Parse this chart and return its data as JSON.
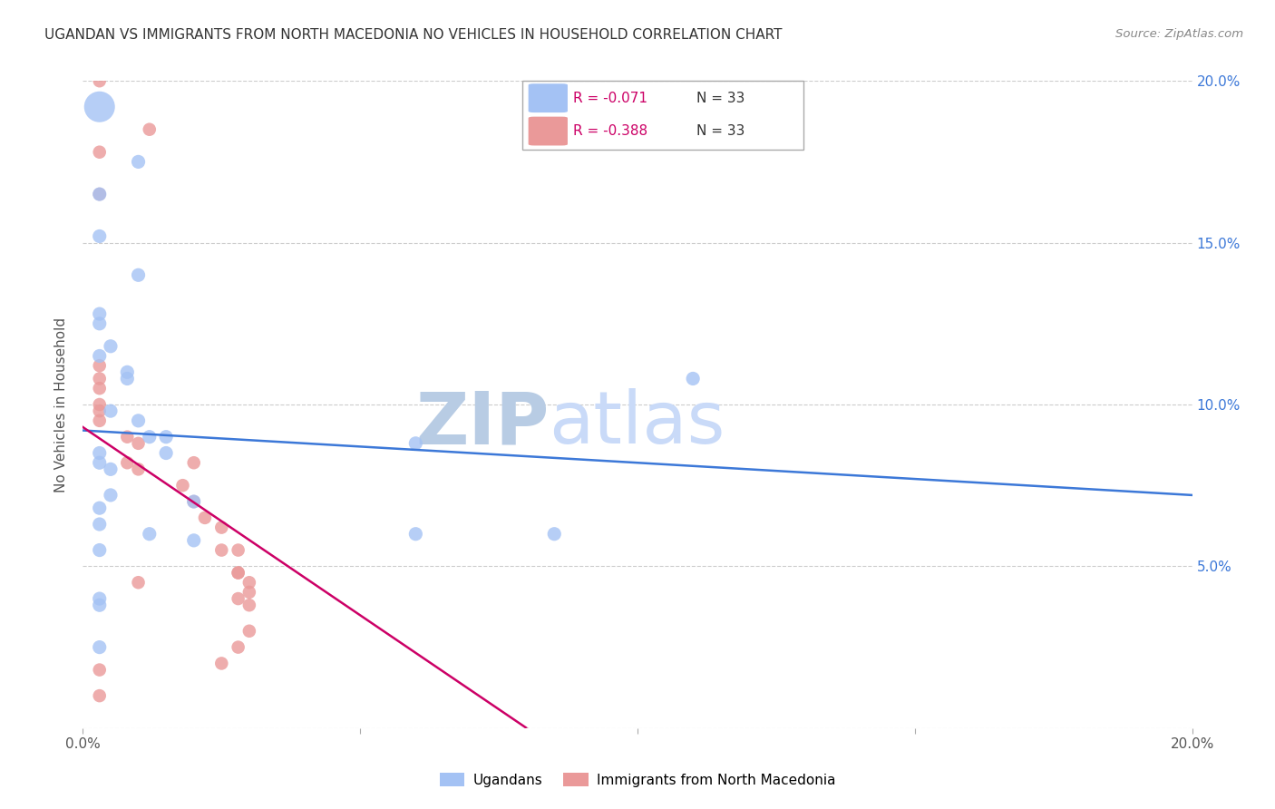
{
  "title": "UGANDAN VS IMMIGRANTS FROM NORTH MACEDONIA NO VEHICLES IN HOUSEHOLD CORRELATION CHART",
  "source": "Source: ZipAtlas.com",
  "ylabel": "No Vehicles in Household",
  "xlim": [
    0.0,
    0.2
  ],
  "ylim": [
    0.0,
    0.2
  ],
  "blue_color": "#a4c2f4",
  "pink_color": "#ea9999",
  "blue_line_color": "#3c78d8",
  "pink_line_color": "#cc0066",
  "pink_line_dashed_color": "#cccccc",
  "watermark_zip_color": "#c9d9f0",
  "watermark_atlas_color": "#c9d9f0",
  "legend_blue_R": "-0.071",
  "legend_blue_N": "33",
  "legend_pink_R": "-0.388",
  "legend_pink_N": "33",
  "legend_blue_label": "Ugandans",
  "legend_pink_label": "Immigrants from North Macedonia",
  "ugandan_x": [
    0.003,
    0.01,
    0.003,
    0.003,
    0.01,
    0.003,
    0.003,
    0.005,
    0.003,
    0.008,
    0.008,
    0.005,
    0.01,
    0.012,
    0.015,
    0.015,
    0.003,
    0.003,
    0.005,
    0.005,
    0.003,
    0.003,
    0.012,
    0.02,
    0.003,
    0.003,
    0.003,
    0.02,
    0.06,
    0.06,
    0.085,
    0.11,
    0.003
  ],
  "ugandan_y": [
    0.192,
    0.175,
    0.165,
    0.152,
    0.14,
    0.128,
    0.125,
    0.118,
    0.115,
    0.11,
    0.108,
    0.098,
    0.095,
    0.09,
    0.09,
    0.085,
    0.085,
    0.082,
    0.08,
    0.072,
    0.068,
    0.063,
    0.06,
    0.058,
    0.055,
    0.04,
    0.038,
    0.07,
    0.088,
    0.06,
    0.06,
    0.108,
    0.025
  ],
  "ugandan_size_large": 1,
  "macedonian_x": [
    0.003,
    0.012,
    0.003,
    0.003,
    0.003,
    0.003,
    0.003,
    0.003,
    0.003,
    0.003,
    0.008,
    0.008,
    0.01,
    0.01,
    0.018,
    0.02,
    0.02,
    0.022,
    0.025,
    0.025,
    0.028,
    0.028,
    0.028,
    0.03,
    0.03,
    0.028,
    0.03,
    0.03,
    0.028,
    0.025,
    0.003,
    0.003,
    0.01
  ],
  "macedonian_y": [
    0.2,
    0.185,
    0.178,
    0.165,
    0.112,
    0.108,
    0.105,
    0.1,
    0.098,
    0.095,
    0.09,
    0.082,
    0.088,
    0.08,
    0.075,
    0.082,
    0.07,
    0.065,
    0.062,
    0.055,
    0.055,
    0.048,
    0.048,
    0.045,
    0.042,
    0.04,
    0.038,
    0.03,
    0.025,
    0.02,
    0.018,
    0.01,
    0.045
  ],
  "blue_line_x0": 0.0,
  "blue_line_y0": 0.092,
  "blue_line_x1": 0.2,
  "blue_line_y1": 0.072,
  "pink_line_x0": 0.0,
  "pink_line_y0": 0.093,
  "pink_line_x1": 0.08,
  "pink_line_y1": 0.0
}
